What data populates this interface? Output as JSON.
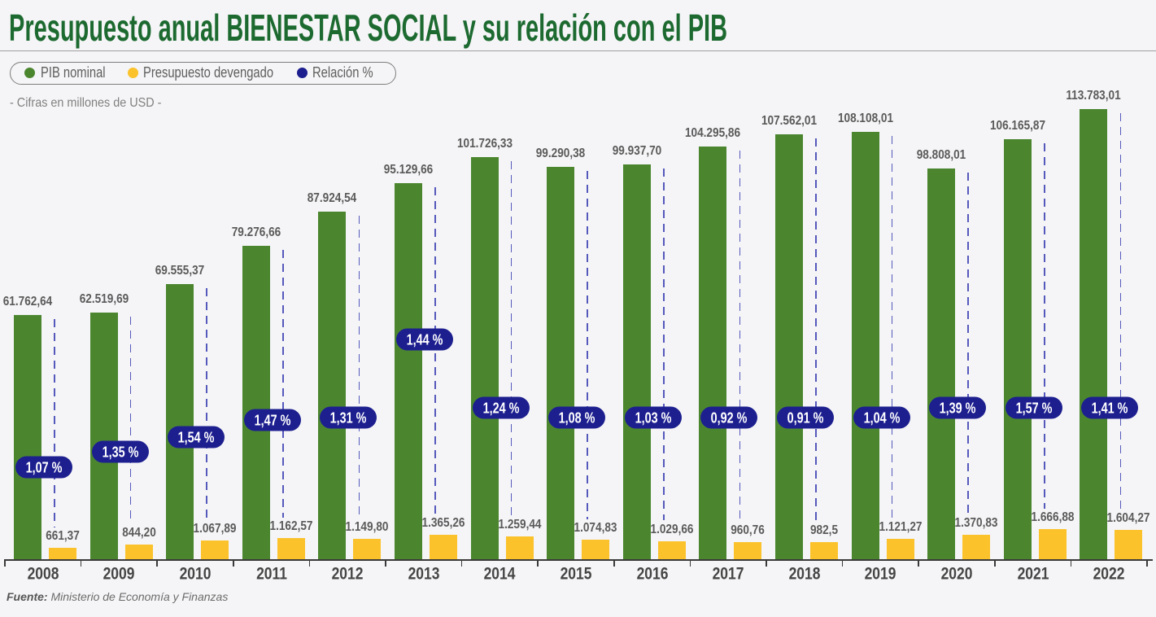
{
  "chart_data": {
    "type": "bar",
    "title": "Presupuesto anual BIENESTAR SOCIAL y su relación con el PIB",
    "subtitle": "- Cifras en millones de USD -",
    "categories": [
      "2008",
      "2009",
      "2010",
      "2011",
      "2012",
      "2013",
      "2014",
      "2015",
      "2016",
      "2017",
      "2018",
      "2019",
      "2020",
      "2021",
      "2022"
    ],
    "series": [
      {
        "name": "PIB nominal",
        "type": "bar",
        "color": "#4b862f",
        "values": [
          61762.64,
          62519.69,
          69555.37,
          79276.66,
          87924.54,
          95129.66,
          101726.33,
          99290.38,
          99937.7,
          104295.86,
          107562.01,
          108108.01,
          98808.01,
          106165.87,
          113783.01
        ],
        "labels": [
          "61.762,64",
          "62.519,69",
          "69.555,37",
          "79.276,66",
          "87.924,54",
          "95.129,66",
          "101.726,33",
          "99.290,38",
          "99.937,70",
          "104.295,86",
          "107.562,01",
          "108.108,01",
          "98.808,01",
          "106.165,87",
          "113.783,01"
        ]
      },
      {
        "name": "Presupuesto devengado",
        "type": "bar",
        "color": "#fbc22c",
        "values": [
          661.37,
          844.2,
          1067.89,
          1162.57,
          1149.8,
          1365.26,
          1259.44,
          1074.83,
          1029.66,
          960.76,
          982.5,
          1121.27,
          1370.83,
          1666.88,
          1604.27
        ],
        "labels": [
          "661,37",
          "844,20",
          "1.067,89",
          "1.162,57",
          "1.149,80",
          "1.365,26",
          "1.259,44",
          "1.074,83",
          "1.029,66",
          "960,76",
          "982,5",
          "1.121,27",
          "1.370,83",
          "1.666,88",
          "1.604,27"
        ]
      },
      {
        "name": "Relación %",
        "type": "label",
        "color": "#1d1f8f",
        "dash_color": "#5559bb",
        "values": [
          1.07,
          1.35,
          1.54,
          1.47,
          1.31,
          1.44,
          1.24,
          1.08,
          1.03,
          0.92,
          0.91,
          1.04,
          1.39,
          1.57,
          1.41
        ],
        "labels": [
          "1,07 %",
          "1,35 %",
          "1,54 %",
          "1,47 %",
          "1,31 %",
          "1,44 %",
          "1,24 %",
          "1,08 %",
          "1,03 %",
          "0,92 %",
          "0,91 %",
          "1,04 %",
          "1,39 %",
          "1,57 %",
          "1,41 %"
        ]
      }
    ],
    "ylim": [
      0,
      120000
    ],
    "y2lim": [
      0,
      25600
    ],
    "grid": false,
    "legend_position": "top-left"
  },
  "source": {
    "prefix": "Fuente:",
    "text": "Ministerio de Economía y Finanzas"
  }
}
